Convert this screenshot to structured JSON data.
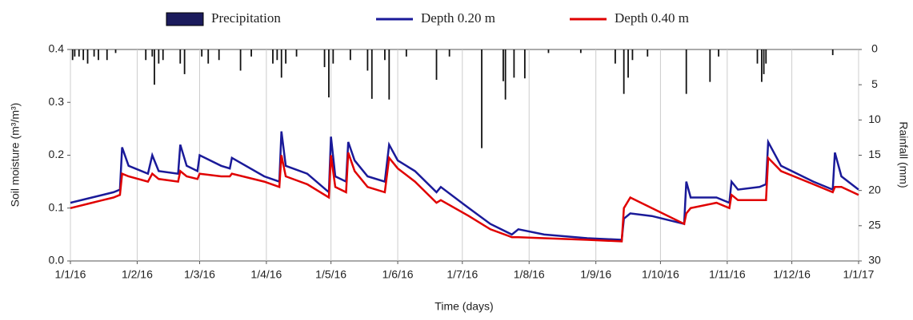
{
  "chart_data": {
    "type": "line",
    "xlabel": "Time (days)",
    "ylabel": "Soil moisture (m³/m³)",
    "y2label": "Rainfall (mm)",
    "xlim": [
      "2016-01-01",
      "2017-01-01"
    ],
    "xticks": [
      {
        "value": "2016-01-01",
        "label": "1/1/16"
      },
      {
        "value": "2016-02-01",
        "label": "1/2/16"
      },
      {
        "value": "2016-03-01",
        "label": "1/3/16"
      },
      {
        "value": "2016-04-01",
        "label": "1/4/16"
      },
      {
        "value": "2016-05-01",
        "label": "1/5/16"
      },
      {
        "value": "2016-06-01",
        "label": "1/6/16"
      },
      {
        "value": "2016-07-01",
        "label": "1/7/16"
      },
      {
        "value": "2016-08-01",
        "label": "1/8/16"
      },
      {
        "value": "2016-09-01",
        "label": "1/9/16"
      },
      {
        "value": "2016-10-01",
        "label": "1/10/16"
      },
      {
        "value": "2016-11-01",
        "label": "1/11/16"
      },
      {
        "value": "2016-12-01",
        "label": "1/12/16"
      },
      {
        "value": "2017-01-01",
        "label": "1/1/17"
      }
    ],
    "ylim": [
      0,
      0.4
    ],
    "yticks": [
      {
        "value": 0,
        "label": "0.0"
      },
      0.1,
      0.2,
      0.3,
      0.4
    ],
    "y2lim": [
      0,
      30
    ],
    "y2_reversed": true,
    "y2ticks": [
      0,
      5,
      10,
      15,
      20,
      25,
      30
    ],
    "grid": "x",
    "legend": "top",
    "x": [
      "2016-01-01",
      "2016-01-11",
      "2016-01-21",
      "2016-01-24",
      "2016-01-25",
      "2016-01-28",
      "2016-02-06",
      "2016-02-08",
      "2016-02-11",
      "2016-02-20",
      "2016-02-21",
      "2016-02-24",
      "2016-02-29",
      "2016-03-01",
      "2016-03-11",
      "2016-03-15",
      "2016-03-16",
      "2016-03-31",
      "2016-04-07",
      "2016-04-08",
      "2016-04-10",
      "2016-04-20",
      "2016-04-30",
      "2016-05-01",
      "2016-05-03",
      "2016-05-08",
      "2016-05-09",
      "2016-05-12",
      "2016-05-18",
      "2016-05-26",
      "2016-05-28",
      "2016-06-01",
      "2016-06-09",
      "2016-06-19",
      "2016-06-21",
      "2016-07-04",
      "2016-07-14",
      "2016-07-24",
      "2016-07-27",
      "2016-08-08",
      "2016-08-28",
      "2016-09-13",
      "2016-09-14",
      "2016-09-17",
      "2016-09-27",
      "2016-10-12",
      "2016-10-13",
      "2016-10-15",
      "2016-10-27",
      "2016-11-02",
      "2016-11-03",
      "2016-11-06",
      "2016-11-16",
      "2016-11-19",
      "2016-11-20",
      "2016-11-26",
      "2016-12-11",
      "2016-12-20",
      "2016-12-21",
      "2016-12-24",
      "2017-01-01"
    ],
    "series": [
      {
        "name": "Precipitation",
        "type": "bar",
        "axis": "y2",
        "color": "#1b1b5c",
        "x": [
          "2016-01-02",
          "2016-01-03",
          "2016-01-05",
          "2016-01-07",
          "2016-01-09",
          "2016-01-12",
          "2016-01-14",
          "2016-01-18",
          "2016-01-22",
          "2016-02-05",
          "2016-02-08",
          "2016-02-09",
          "2016-02-11",
          "2016-02-13",
          "2016-02-21",
          "2016-02-23",
          "2016-03-02",
          "2016-03-05",
          "2016-03-10",
          "2016-03-20",
          "2016-03-25",
          "2016-04-04",
          "2016-04-06",
          "2016-04-08",
          "2016-04-10",
          "2016-04-15",
          "2016-04-28",
          "2016-04-30",
          "2016-05-02",
          "2016-05-10",
          "2016-05-18",
          "2016-05-20",
          "2016-05-26",
          "2016-05-28",
          "2016-06-05",
          "2016-06-19",
          "2016-06-25",
          "2016-07-10",
          "2016-07-20",
          "2016-07-21",
          "2016-07-25",
          "2016-07-30",
          "2016-08-10",
          "2016-08-25",
          "2016-09-10",
          "2016-09-14",
          "2016-09-16",
          "2016-09-18",
          "2016-09-25",
          "2016-10-13",
          "2016-10-24",
          "2016-10-28",
          "2016-11-15",
          "2016-11-17",
          "2016-11-18",
          "2016-11-19",
          "2016-12-20"
        ],
        "values": [
          1.5,
          1,
          1,
          1.5,
          2,
          1,
          1.5,
          1.5,
          0.5,
          1.5,
          1,
          5,
          2,
          1.5,
          2,
          3.5,
          1,
          2,
          1.5,
          3,
          1,
          2,
          1.5,
          4,
          2,
          1,
          2.5,
          6.8,
          2,
          1.5,
          3,
          7,
          1.5,
          7.1,
          1,
          4.3,
          1,
          14,
          4.5,
          7.1,
          4,
          4.1,
          0.5,
          0.5,
          2,
          6.3,
          4,
          1.5,
          1,
          6.3,
          4.6,
          1,
          2,
          4.6,
          3.5,
          2,
          0.8
        ]
      },
      {
        "name": "Depth 0.20 m",
        "color": "#1a1a99",
        "values": [
          0.11,
          0.12,
          0.13,
          0.135,
          0.215,
          0.18,
          0.165,
          0.2,
          0.17,
          0.165,
          0.22,
          0.18,
          0.17,
          0.2,
          0.18,
          0.175,
          0.195,
          0.16,
          0.15,
          0.245,
          0.18,
          0.165,
          0.13,
          0.235,
          0.16,
          0.15,
          0.225,
          0.19,
          0.16,
          0.15,
          0.22,
          0.19,
          0.17,
          0.13,
          0.14,
          0.1,
          0.07,
          0.05,
          0.06,
          0.05,
          0.043,
          0.04,
          0.08,
          0.09,
          0.085,
          0.07,
          0.15,
          0.12,
          0.12,
          0.11,
          0.15,
          0.135,
          0.14,
          0.145,
          0.225,
          0.18,
          0.15,
          0.135,
          0.205,
          0.16,
          0.135
        ]
      },
      {
        "name": "Depth 0.40 m",
        "color": "#e00000",
        "values": [
          0.1,
          0.11,
          0.12,
          0.125,
          0.165,
          0.16,
          0.15,
          0.165,
          0.155,
          0.15,
          0.17,
          0.16,
          0.155,
          0.165,
          0.16,
          0.16,
          0.165,
          0.15,
          0.14,
          0.2,
          0.16,
          0.145,
          0.12,
          0.2,
          0.14,
          0.13,
          0.205,
          0.17,
          0.14,
          0.13,
          0.195,
          0.175,
          0.15,
          0.11,
          0.115,
          0.085,
          0.06,
          0.045,
          0.045,
          0.043,
          0.04,
          0.037,
          0.1,
          0.12,
          0.1,
          0.07,
          0.09,
          0.1,
          0.11,
          0.1,
          0.125,
          0.115,
          0.115,
          0.115,
          0.195,
          0.17,
          0.145,
          0.13,
          0.14,
          0.14,
          0.125
        ]
      }
    ]
  }
}
